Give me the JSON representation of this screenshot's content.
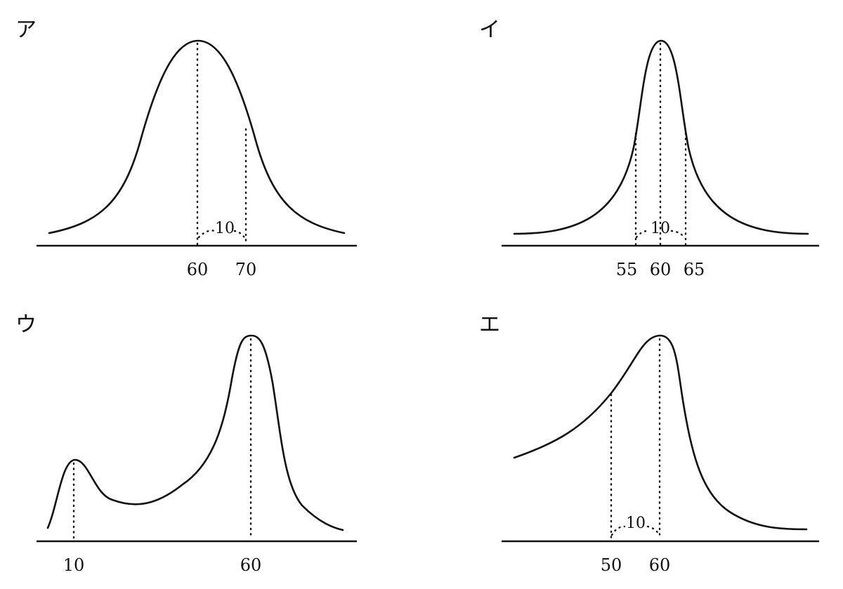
{
  "panels": [
    {
      "id": "a",
      "label": "ア",
      "ticks": [
        "60",
        "70"
      ],
      "gap_label": "10"
    },
    {
      "id": "i",
      "label": "イ",
      "ticks": [
        "55",
        "60",
        "65"
      ],
      "gap_label": "10"
    },
    {
      "id": "u",
      "label": "ウ",
      "ticks": [
        "10",
        "60"
      ]
    },
    {
      "id": "e",
      "label": "エ",
      "ticks": [
        "50",
        "60"
      ],
      "gap_label": "10"
    }
  ]
}
